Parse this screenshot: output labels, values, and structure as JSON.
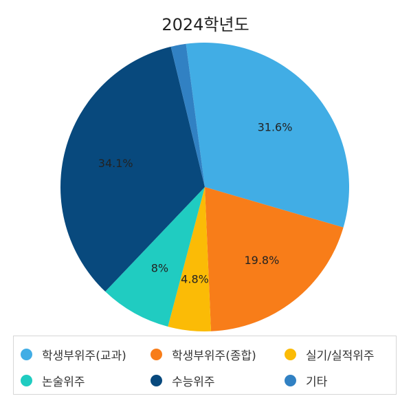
{
  "chart_data": {
    "type": "pie",
    "title": "2024학년도",
    "legend_position": "bottom",
    "series": [
      {
        "name": "학생부위주(교과)",
        "value": 31.6,
        "label": "31.6%",
        "color": "#41ade5"
      },
      {
        "name": "학생부위주(종합)",
        "value": 19.8,
        "label": "19.8%",
        "color": "#f87d19"
      },
      {
        "name": "실기/실적위주",
        "value": 4.8,
        "label": "4.8%",
        "color": "#fbbb06"
      },
      {
        "name": "논술위주",
        "value": 8,
        "label": "8%",
        "color": "#20ccc1"
      },
      {
        "name": "수능위주",
        "value": 34.1,
        "label": "34.1%",
        "color": "#08497d"
      },
      {
        "name": "기타",
        "value": 1.7,
        "label": "",
        "color": "#3181c3"
      }
    ]
  }
}
